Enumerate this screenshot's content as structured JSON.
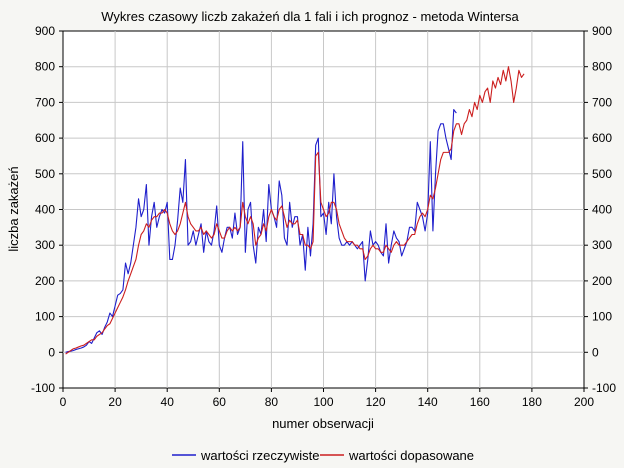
{
  "chart_data": {
    "type": "line",
    "title": "Wykres czasowy liczb zakażeń dla 1 fali i ich prognoz - metoda Wintersa",
    "xlabel": "numer obserwacji",
    "ylabel": "liczba zakażeń",
    "xlim": [
      0,
      200
    ],
    "ylim": [
      -100,
      900
    ],
    "x_ticks": [
      0,
      20,
      40,
      60,
      80,
      100,
      120,
      140,
      160,
      180,
      200
    ],
    "y_ticks": [
      -100,
      0,
      100,
      200,
      300,
      400,
      500,
      600,
      700,
      800,
      900
    ],
    "grid": true,
    "legend_position": "bottom",
    "series": [
      {
        "name": "wartości rzeczywiste",
        "color": "#1f1fcc",
        "x_start": 1,
        "values": [
          0,
          2,
          3,
          5,
          8,
          10,
          12,
          15,
          20,
          30,
          25,
          40,
          55,
          60,
          50,
          70,
          85,
          110,
          100,
          130,
          160,
          165,
          175,
          250,
          220,
          250,
          300,
          350,
          430,
          380,
          400,
          470,
          300,
          380,
          420,
          350,
          380,
          400,
          390,
          420,
          260,
          260,
          300,
          370,
          460,
          420,
          540,
          300,
          310,
          340,
          300,
          330,
          360,
          280,
          340,
          310,
          300,
          340,
          410,
          300,
          280,
          320,
          350,
          350,
          320,
          390,
          330,
          350,
          590,
          280,
          400,
          420,
          300,
          250,
          350,
          330,
          400,
          310,
          470,
          400,
          380,
          350,
          480,
          440,
          320,
          300,
          420,
          350,
          380,
          380,
          300,
          330,
          230,
          350,
          270,
          360,
          580,
          600,
          380,
          390,
          330,
          420,
          360,
          500,
          380,
          320,
          300,
          300,
          310,
          300,
          310,
          300,
          290,
          300,
          310,
          200,
          260,
          340,
          300,
          310,
          300,
          280,
          270,
          360,
          250,
          300,
          340,
          320,
          310,
          270,
          290,
          310,
          350,
          350,
          340,
          420,
          400,
          380,
          340,
          390,
          590,
          340,
          500,
          620,
          640,
          640,
          600,
          570,
          540,
          680,
          670
        ]
      },
      {
        "name": "wartości dopasowane",
        "color": "#cc1f1f",
        "x_start": 1,
        "values": [
          -5,
          0,
          5,
          10,
          12,
          15,
          18,
          20,
          25,
          30,
          35,
          35,
          45,
          50,
          55,
          65,
          75,
          80,
          95,
          110,
          125,
          140,
          155,
          175,
          200,
          220,
          240,
          260,
          300,
          330,
          340,
          360,
          350,
          370,
          380,
          380,
          390,
          390,
          400,
          390,
          360,
          340,
          330,
          340,
          360,
          390,
          420,
          380,
          360,
          350,
          340,
          340,
          350,
          330,
          340,
          330,
          320,
          330,
          360,
          340,
          320,
          320,
          340,
          350,
          340,
          350,
          340,
          350,
          420,
          380,
          360,
          380,
          360,
          300,
          320,
          330,
          360,
          340,
          380,
          400,
          380,
          370,
          400,
          410,
          380,
          350,
          370,
          360,
          360,
          370,
          330,
          330,
          300,
          300,
          290,
          310,
          550,
          560,
          420,
          400,
          380,
          390,
          420,
          420,
          400,
          360,
          340,
          320,
          310,
          310,
          310,
          300,
          300,
          290,
          290,
          260,
          270,
          290,
          300,
          290,
          290,
          280,
          280,
          300,
          290,
          280,
          300,
          310,
          300,
          300,
          300,
          310,
          320,
          330,
          330,
          360,
          380,
          390,
          380,
          400,
          440,
          430,
          460,
          500,
          540,
          560,
          560,
          560,
          570,
          620,
          640,
          640,
          610,
          640,
          650,
          680,
          660,
          700,
          680,
          720,
          700,
          730,
          740,
          700,
          760,
          740,
          770,
          750,
          790,
          760,
          800,
          760,
          700,
          740,
          790,
          770,
          780
        ]
      }
    ]
  }
}
